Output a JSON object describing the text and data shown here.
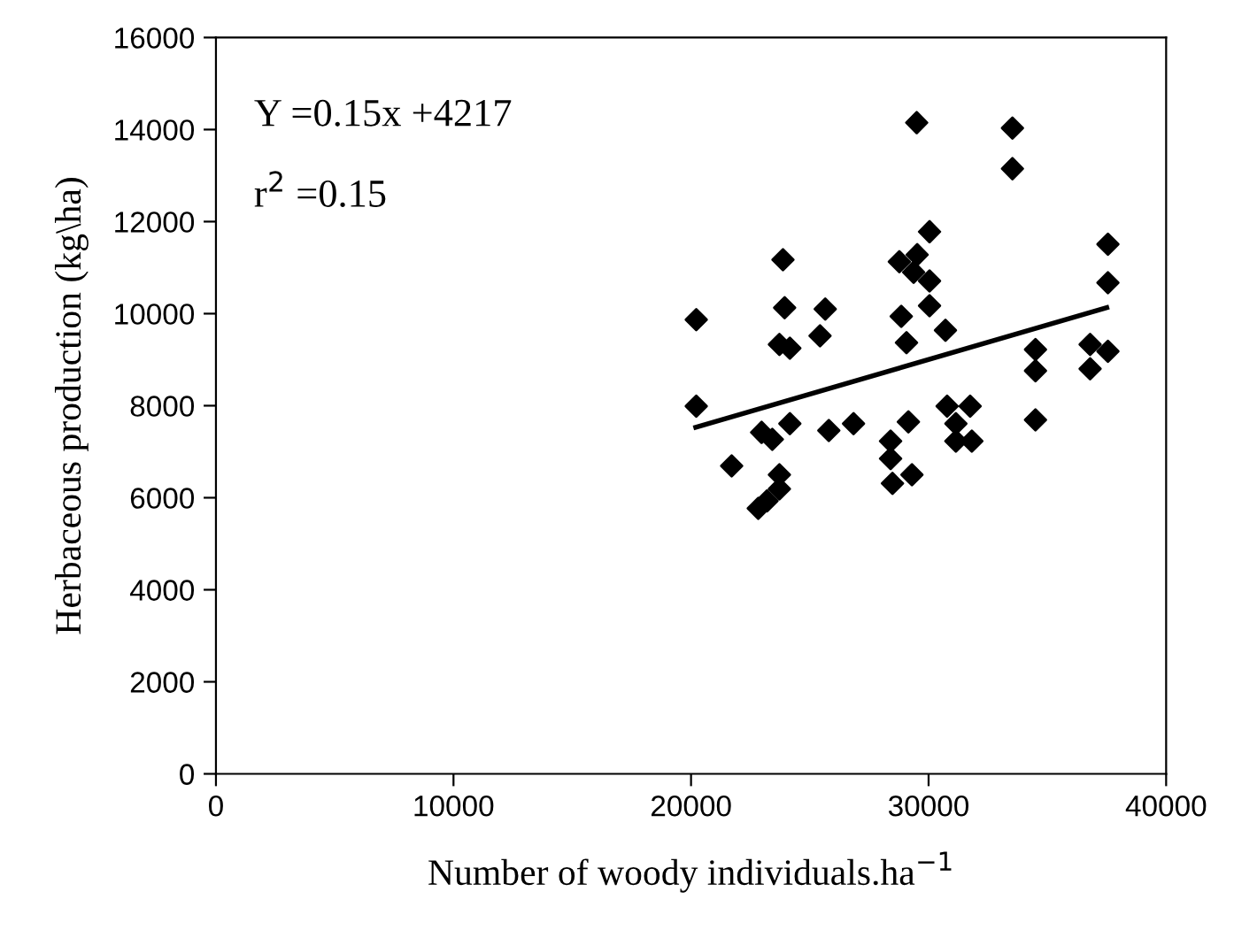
{
  "chart_data": {
    "type": "scatter",
    "xlabel": "Number of woody individuals.ha$^{−1}$",
    "ylabel": "Herbaceous production (kg\\ha)",
    "xlim": [
      0,
      40000
    ],
    "xticks": [
      0,
      10000,
      20000,
      30000,
      40000
    ],
    "ylim": [
      0,
      16000
    ],
    "yticks": [
      0,
      2000,
      4000,
      6000,
      8000,
      10000,
      12000,
      14000,
      16000
    ],
    "grid": false,
    "legend": false,
    "marker": "diamond",
    "annotations": [
      "Y =0.15x +4217",
      "r$^{2}$ =0.15"
    ],
    "series": [
      {
        "color": "#000000",
        "x": [
          23870,
          23940,
          25650,
          25430,
          20220,
          23720,
          24160,
          20220,
          22970,
          23420,
          24160,
          25800,
          26840,
          21710,
          23720,
          23720,
          23200,
          22830,
          33530,
          33530,
          30040,
          28770,
          29520,
          29370,
          30040,
          30040,
          28850,
          30710,
          29070,
          34500,
          34500,
          36800,
          37550,
          36800,
          37550,
          37550,
          29150,
          28400,
          28400,
          29300,
          28480,
          30780,
          31750,
          31150,
          31150,
          31820,
          34500,
          29500
        ],
        "values": [
          11170,
          10130,
          10100,
          9520,
          9870,
          9330,
          9250,
          7990,
          7420,
          7270,
          7610,
          7460,
          7610,
          6690,
          6500,
          6190,
          5930,
          5770,
          14030,
          13150,
          11780,
          11130,
          11280,
          10900,
          10710,
          10170,
          9940,
          9640,
          9370,
          9220,
          8760,
          9330,
          9180,
          8800,
          11510,
          10670,
          7650,
          7230,
          6850,
          6500,
          6310,
          7990,
          7990,
          7610,
          7230,
          7230,
          7690,
          14150
        ]
      },
      {
        "type": "line",
        "color": "#000000",
        "x": [
          20200,
          37500
        ],
        "values": [
          7530,
          10130
        ],
        "marker": "none",
        "line_style": "solid"
      }
    ]
  }
}
